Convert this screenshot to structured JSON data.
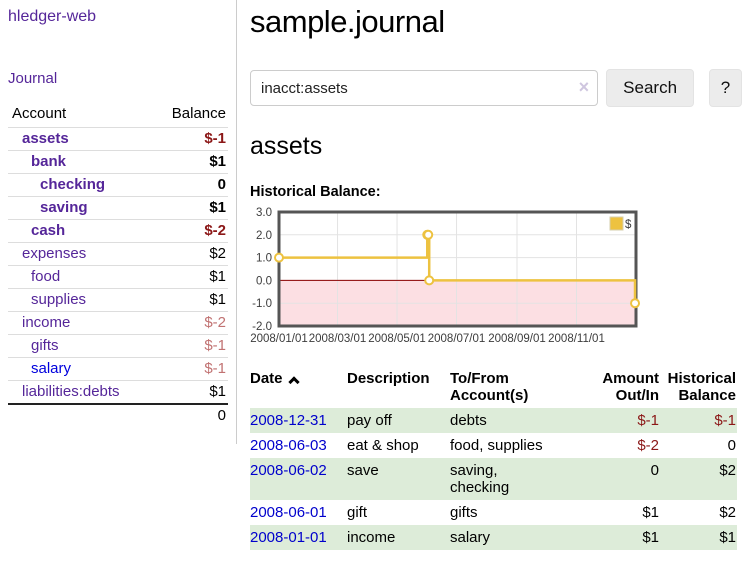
{
  "sidebar": {
    "brand": "hledger-web",
    "journal_link": "Journal",
    "accounts": {
      "header": {
        "account": "Account",
        "balance": "Balance"
      },
      "rows": [
        {
          "name": "assets",
          "balance": "$-1",
          "depth": 1,
          "bold": true,
          "balance_class": "neg-strong",
          "link_class": ""
        },
        {
          "name": "bank",
          "balance": "$1",
          "depth": 2,
          "bold": true,
          "balance_class": "",
          "link_class": ""
        },
        {
          "name": "checking",
          "balance": "0",
          "depth": 3,
          "bold": true,
          "balance_class": "",
          "link_class": ""
        },
        {
          "name": "saving",
          "balance": "$1",
          "depth": 3,
          "bold": true,
          "balance_class": "",
          "link_class": ""
        },
        {
          "name": "cash",
          "balance": "$-2",
          "depth": 2,
          "bold": true,
          "balance_class": "neg-strong",
          "link_class": ""
        },
        {
          "name": "expenses",
          "balance": "$2",
          "depth": 1,
          "bold": false,
          "balance_class": "",
          "link_class": ""
        },
        {
          "name": "food",
          "balance": "$1",
          "depth": 2,
          "bold": false,
          "balance_class": "",
          "link_class": ""
        },
        {
          "name": "supplies",
          "balance": "$1",
          "depth": 2,
          "bold": false,
          "balance_class": "",
          "link_class": ""
        },
        {
          "name": "income",
          "balance": "$-2",
          "depth": 1,
          "bold": false,
          "balance_class": "neg-soft",
          "link_class": ""
        },
        {
          "name": "gifts",
          "balance": "$-1",
          "depth": 2,
          "bold": false,
          "balance_class": "neg-soft",
          "link_class": ""
        },
        {
          "name": "salary",
          "balance": "$-1",
          "depth": 2,
          "bold": false,
          "balance_class": "neg-soft",
          "link_class": "blue"
        },
        {
          "name": "liabilities:debts",
          "balance": "$1",
          "depth": 1,
          "bold": false,
          "balance_class": "",
          "link_class": ""
        }
      ],
      "total": "0"
    }
  },
  "main": {
    "title": "sample.journal",
    "search": {
      "value": "inacct:assets",
      "clear": "×",
      "search_button": "Search",
      "help_button": "?"
    },
    "account_heading": "assets",
    "section_label": "Historical Balance:"
  },
  "chart_data": {
    "type": "line",
    "step": true,
    "title": "Historical Balance",
    "series": [
      {
        "name": "$",
        "color": "#edc240",
        "points": [
          [
            "2008-01-01",
            1
          ],
          [
            "2008-06-01",
            2
          ],
          [
            "2008-06-02",
            2
          ],
          [
            "2008-06-03",
            0
          ],
          [
            "2008-12-31",
            -1
          ]
        ]
      }
    ],
    "x_domain": [
      "2008-01-01",
      "2009-01-01"
    ],
    "ylim": [
      -2,
      3
    ],
    "y_ticks": [
      "3.0",
      "2.0",
      "1.0",
      "0.0",
      "-1.0",
      "-2.0"
    ],
    "x_ticks": [
      "2008/01/01",
      "2008/03/01",
      "2008/05/01",
      "2008/07/01",
      "2008/09/01",
      "2008/11/01"
    ],
    "legend": "$",
    "legend_position": "top-right",
    "grid": true,
    "negative_region_below": 0,
    "negative_fill": "#fcdfe3",
    "zero_line_color": "#8b0000",
    "grid_color": "#e3e3e3",
    "border_color": "#555555",
    "marker_fill": "#ffffff"
  },
  "register": {
    "headers": {
      "date": "Date",
      "description": "Description",
      "accounts": "To/From Account(s)",
      "amount": "Amount Out/In",
      "balance": "Historical Balance"
    },
    "rows": [
      {
        "date": "2008-12-31",
        "description": "pay off",
        "accounts": "debts",
        "amount": "$-1",
        "balance": "$-1",
        "amount_neg": true,
        "balance_neg": true
      },
      {
        "date": "2008-06-03",
        "description": "eat & shop",
        "accounts": "food, supplies",
        "amount": "$-2",
        "balance": "0",
        "amount_neg": true,
        "balance_neg": false
      },
      {
        "date": "2008-06-02",
        "description": "save",
        "accounts": "saving, checking",
        "amount": "0",
        "balance": "$2",
        "amount_neg": false,
        "balance_neg": false
      },
      {
        "date": "2008-06-01",
        "description": "gift",
        "accounts": "gifts",
        "amount": "$1",
        "balance": "$2",
        "amount_neg": false,
        "balance_neg": false
      },
      {
        "date": "2008-01-01",
        "description": "income",
        "accounts": "salary",
        "amount": "$1",
        "balance": "$1",
        "amount_neg": false,
        "balance_neg": false
      }
    ]
  },
  "colors": {
    "link_purple": "#552699",
    "link_blue": "#0000cc",
    "negative_strong": "#8b1717",
    "negative_soft": "#c17272",
    "row_stripe_green": "#ddecd9",
    "series_gold": "#edc240",
    "negative_region_pink": "#fcdfe3",
    "zero_line_red": "#8b0000"
  }
}
